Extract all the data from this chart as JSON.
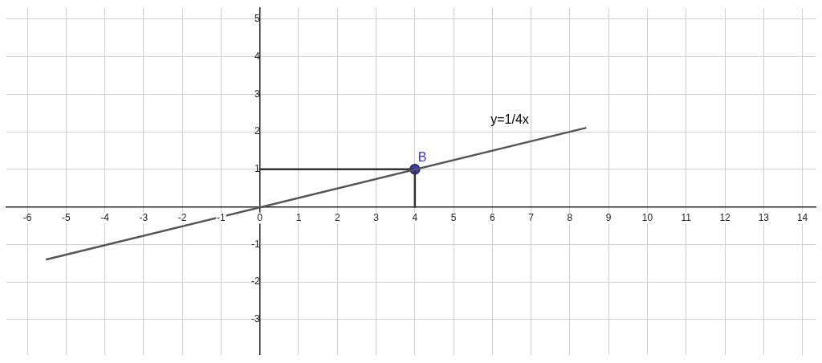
{
  "chart_data": {
    "type": "line",
    "xlim": [
      -6.55,
      14.35
    ],
    "ylim": [
      -3.94,
      5.29
    ],
    "xticks": [
      -6,
      -5,
      -4,
      -3,
      -2,
      -1,
      0,
      1,
      2,
      3,
      4,
      5,
      6,
      7,
      8,
      9,
      10,
      11,
      12,
      13,
      14
    ],
    "yticks": [
      -3,
      -2,
      -1,
      {
        "value": 0,
        "label": null
      },
      1,
      2,
      3,
      4,
      5
    ],
    "grid": true,
    "legend": false,
    "line_style": "solid",
    "marker": "none",
    "series": [
      {
        "color": "#555555",
        "x": [
          -5.5,
          8.4
        ],
        "values": [
          -1.4,
          2.1
        ]
      },
      {
        "color": "#333333",
        "x": [
          0,
          4
        ],
        "values": [
          1,
          1
        ]
      },
      {
        "color": "#333333",
        "x": [
          4,
          4
        ],
        "values": [
          0,
          1
        ]
      },
      {
        "type": "scatter",
        "name": "B",
        "color": "#3b3bd1",
        "marker": "circle",
        "x": [
          4
        ],
        "values": [
          1
        ]
      }
    ],
    "annotations": [
      "y=1/4x"
    ]
  }
}
